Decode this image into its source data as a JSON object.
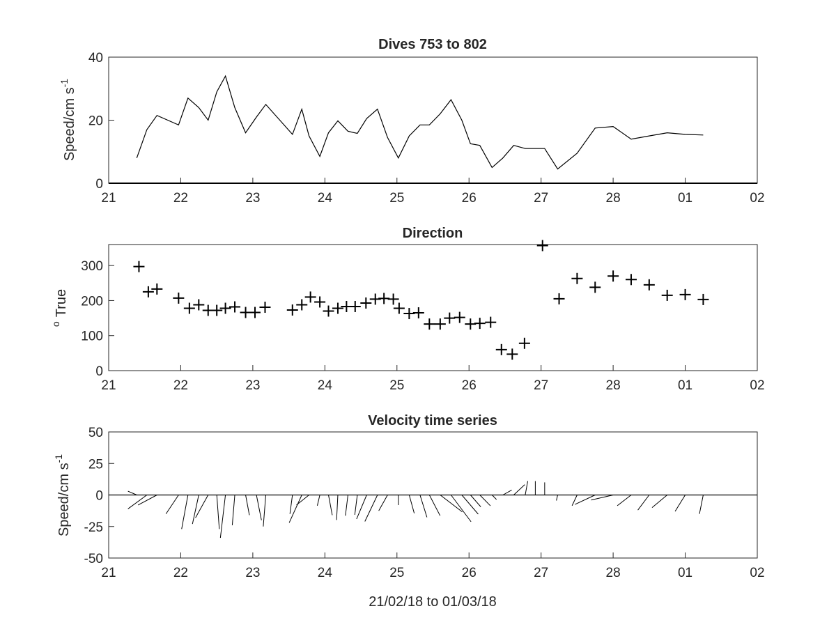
{
  "chart_data": [
    {
      "type": "line",
      "title": "Dives 753 to 802",
      "ylabel": "Speed/cm s",
      "ylabel_superscript": "-1",
      "xlim": [
        21,
        30
      ],
      "ylim": [
        0,
        40
      ],
      "xtick_labels": [
        "21",
        "22",
        "23",
        "24",
        "25",
        "26",
        "27",
        "28",
        "01",
        "02"
      ],
      "ytick_labels": [
        "0",
        "20",
        "40"
      ],
      "color": "#000000",
      "series": [
        {
          "x": [
            21.39,
            21.53,
            21.67,
            21.97,
            22.1,
            22.25,
            22.38,
            22.5,
            22.62,
            22.75,
            22.9,
            23.05,
            23.18,
            23.55,
            23.68,
            23.78,
            23.93,
            24.05,
            24.18,
            24.32,
            24.45,
            24.58,
            24.73,
            24.87,
            25.02,
            25.17,
            25.32,
            25.45,
            25.6,
            25.75,
            25.9,
            26.02,
            26.15,
            26.32,
            26.47,
            26.62,
            26.78,
            26.92,
            27.05,
            27.23,
            27.5,
            27.75,
            28.0,
            28.25,
            28.5,
            28.75,
            29.0,
            29.25
          ],
          "y": [
            8,
            17,
            21.5,
            18.5,
            27,
            24,
            20,
            29,
            34,
            24,
            16,
            21,
            25,
            15.5,
            23.5,
            15,
            8.5,
            16,
            19.8,
            16.5,
            15.8,
            20.5,
            23.5,
            14.5,
            8,
            15,
            18.5,
            18.5,
            22,
            26.5,
            20,
            12.5,
            12,
            5,
            8,
            12,
            11,
            11,
            11,
            4.5,
            9.5,
            17.5,
            18,
            14,
            15,
            16,
            15.5,
            15.3
          ]
        }
      ]
    },
    {
      "type": "scatter",
      "title": "Direction",
      "ylabel": "True",
      "ylabel_superscript": "o",
      "xlim": [
        21,
        30
      ],
      "ylim": [
        0,
        360
      ],
      "xtick_labels": [
        "21",
        "22",
        "23",
        "24",
        "25",
        "26",
        "27",
        "28",
        "01",
        "02"
      ],
      "ytick_labels": [
        "0",
        "100",
        "200",
        "300"
      ],
      "marker": "+",
      "color": "#000000",
      "series": [
        {
          "x": [
            21.42,
            21.55,
            21.67,
            21.97,
            22.12,
            22.25,
            22.38,
            22.5,
            22.62,
            22.75,
            22.9,
            23.03,
            23.17,
            23.55,
            23.68,
            23.8,
            23.93,
            24.05,
            24.18,
            24.3,
            24.42,
            24.57,
            24.7,
            24.82,
            24.95,
            25.03,
            25.17,
            25.3,
            25.45,
            25.6,
            25.73,
            25.87,
            26.02,
            26.15,
            26.3,
            26.45,
            26.6,
            26.77,
            27.02,
            27.25,
            27.5,
            27.75,
            28.0,
            28.25,
            28.5,
            28.75,
            29.0,
            29.25
          ],
          "y": [
            297,
            225,
            233,
            207,
            178,
            188,
            172,
            172,
            178,
            182,
            166,
            166,
            181,
            173,
            188,
            210,
            196,
            170,
            178,
            183,
            183,
            193,
            204,
            206,
            204,
            178,
            163,
            165,
            133,
            133,
            150,
            152,
            133,
            135,
            138,
            60,
            47,
            78,
            357,
            205,
            263,
            238,
            270,
            260,
            245,
            215,
            217,
            203
          ]
        }
      ]
    },
    {
      "type": "line",
      "title": "Velocity time series",
      "ylabel": "Speed/cm s",
      "ylabel_superscript": "-1",
      "xlabel": "21/02/18 to 01/03/18",
      "xlim": [
        21,
        30
      ],
      "ylim": [
        -50,
        50
      ],
      "xtick_labels": [
        "21",
        "22",
        "23",
        "24",
        "25",
        "26",
        "27",
        "28",
        "01",
        "02"
      ],
      "ytick_labels": [
        "-50",
        "-25",
        "0",
        "25",
        "50"
      ],
      "color": "#000000",
      "vectors": [
        {
          "x": 21.39,
          "u": -7,
          "v": 3
        },
        {
          "x": 21.53,
          "u": -15,
          "v": -11
        },
        {
          "x": 21.67,
          "u": -15,
          "v": -8
        },
        {
          "x": 21.97,
          "u": -10,
          "v": -15
        },
        {
          "x": 22.1,
          "u": -5,
          "v": -27
        },
        {
          "x": 22.25,
          "u": -5,
          "v": -23
        },
        {
          "x": 22.38,
          "u": -10,
          "v": -18
        },
        {
          "x": 22.5,
          "u": 2,
          "v": -27
        },
        {
          "x": 22.62,
          "u": -4,
          "v": -34
        },
        {
          "x": 22.75,
          "u": -2,
          "v": -24
        },
        {
          "x": 22.9,
          "u": 3,
          "v": -16
        },
        {
          "x": 23.05,
          "u": 4,
          "v": -20
        },
        {
          "x": 23.18,
          "u": -2,
          "v": -25
        },
        {
          "x": 23.55,
          "u": -2,
          "v": -15
        },
        {
          "x": 23.68,
          "u": -10,
          "v": -22
        },
        {
          "x": 23.78,
          "u": -10,
          "v": -8
        },
        {
          "x": 23.93,
          "u": -2,
          "v": -8.5
        },
        {
          "x": 24.05,
          "u": 3,
          "v": -16
        },
        {
          "x": 24.18,
          "u": -1,
          "v": -19.8
        },
        {
          "x": 24.32,
          "u": -2,
          "v": -16.4
        },
        {
          "x": 24.45,
          "u": -2,
          "v": -15.7
        },
        {
          "x": 24.58,
          "u": -8,
          "v": -19
        },
        {
          "x": 24.73,
          "u": -10,
          "v": -21
        },
        {
          "x": 24.87,
          "u": -7,
          "v": -12.5
        },
        {
          "x": 25.02,
          "u": 0,
          "v": -8
        },
        {
          "x": 25.17,
          "u": 4,
          "v": -14.5
        },
        {
          "x": 25.32,
          "u": 5.5,
          "v": -17.7
        },
        {
          "x": 25.45,
          "u": 8.5,
          "v": -16.4
        },
        {
          "x": 25.6,
          "u": 17.5,
          "v": -13.4
        },
        {
          "x": 25.75,
          "u": 15.9,
          "v": -21.2
        },
        {
          "x": 25.9,
          "u": 13,
          "v": -15.2
        },
        {
          "x": 26.02,
          "u": 8.2,
          "v": -9.4
        },
        {
          "x": 26.15,
          "u": 8.4,
          "v": -8.6
        },
        {
          "x": 26.32,
          "u": 3.5,
          "v": -3.6
        },
        {
          "x": 26.47,
          "u": 7,
          "v": 3.9
        },
        {
          "x": 26.62,
          "u": 8.8,
          "v": 8.2
        },
        {
          "x": 26.78,
          "u": 2,
          "v": 11
        },
        {
          "x": 26.92,
          "u": 0,
          "v": 11
        },
        {
          "x": 27.05,
          "u": 0,
          "v": 10
        },
        {
          "x": 27.23,
          "u": -1,
          "v": -4.4
        },
        {
          "x": 27.5,
          "u": -4,
          "v": -8.5
        },
        {
          "x": 27.75,
          "u": -16,
          "v": -7.5
        },
        {
          "x": 28.0,
          "u": -17.5,
          "v": -4
        },
        {
          "x": 28.25,
          "u": -11,
          "v": -8.5
        },
        {
          "x": 28.5,
          "u": -9,
          "v": -12
        },
        {
          "x": 28.75,
          "u": -12,
          "v": -10
        },
        {
          "x": 29.0,
          "u": -8,
          "v": -13
        },
        {
          "x": 29.25,
          "u": -3,
          "v": -15
        }
      ]
    }
  ]
}
